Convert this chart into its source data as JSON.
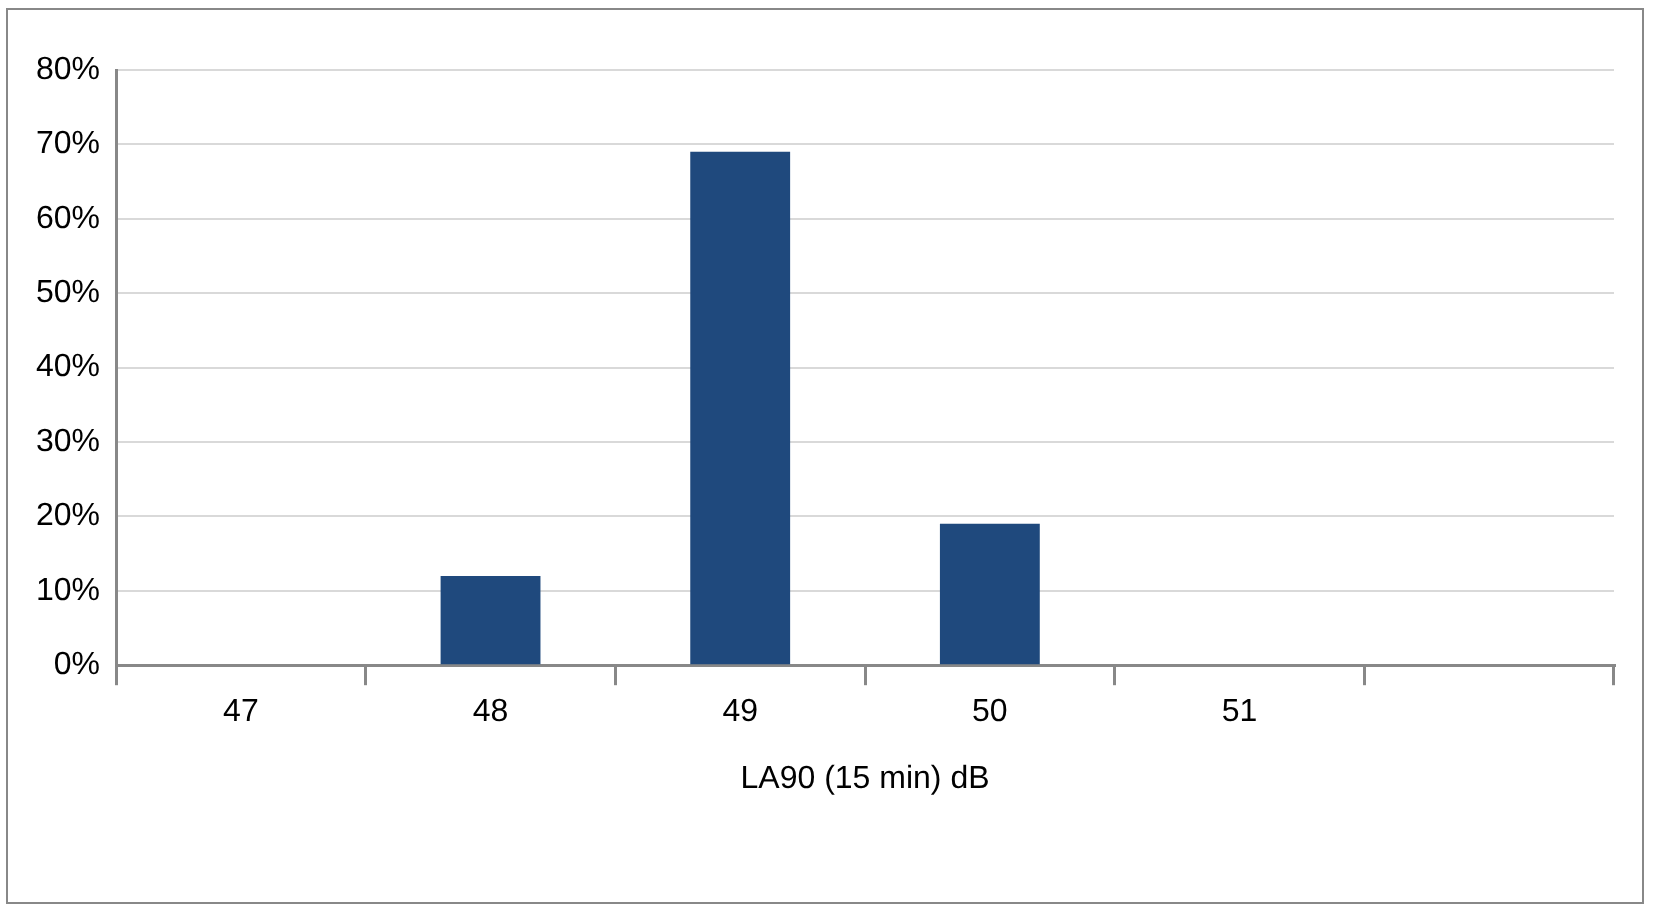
{
  "chart_data": {
    "type": "bar",
    "xlabel": "LA90 (15 min) dB",
    "categories": [
      "47",
      "48",
      "49",
      "50",
      "51",
      null
    ],
    "values": [
      0,
      12,
      69,
      19,
      0,
      0
    ],
    "color": "#1f497d",
    "ylim": [
      0,
      80
    ],
    "yticks": [
      {
        "value": 0,
        "label": "0%"
      },
      {
        "value": 10,
        "label": "10%"
      },
      {
        "value": 20,
        "label": "20%"
      },
      {
        "value": 30,
        "label": "30%"
      },
      {
        "value": 40,
        "label": "40%"
      },
      {
        "value": 50,
        "label": "50%"
      },
      {
        "value": 60,
        "label": "60%"
      },
      {
        "value": 70,
        "label": "70%"
      },
      {
        "value": 80,
        "label": "80%"
      }
    ],
    "grid": "y"
  }
}
